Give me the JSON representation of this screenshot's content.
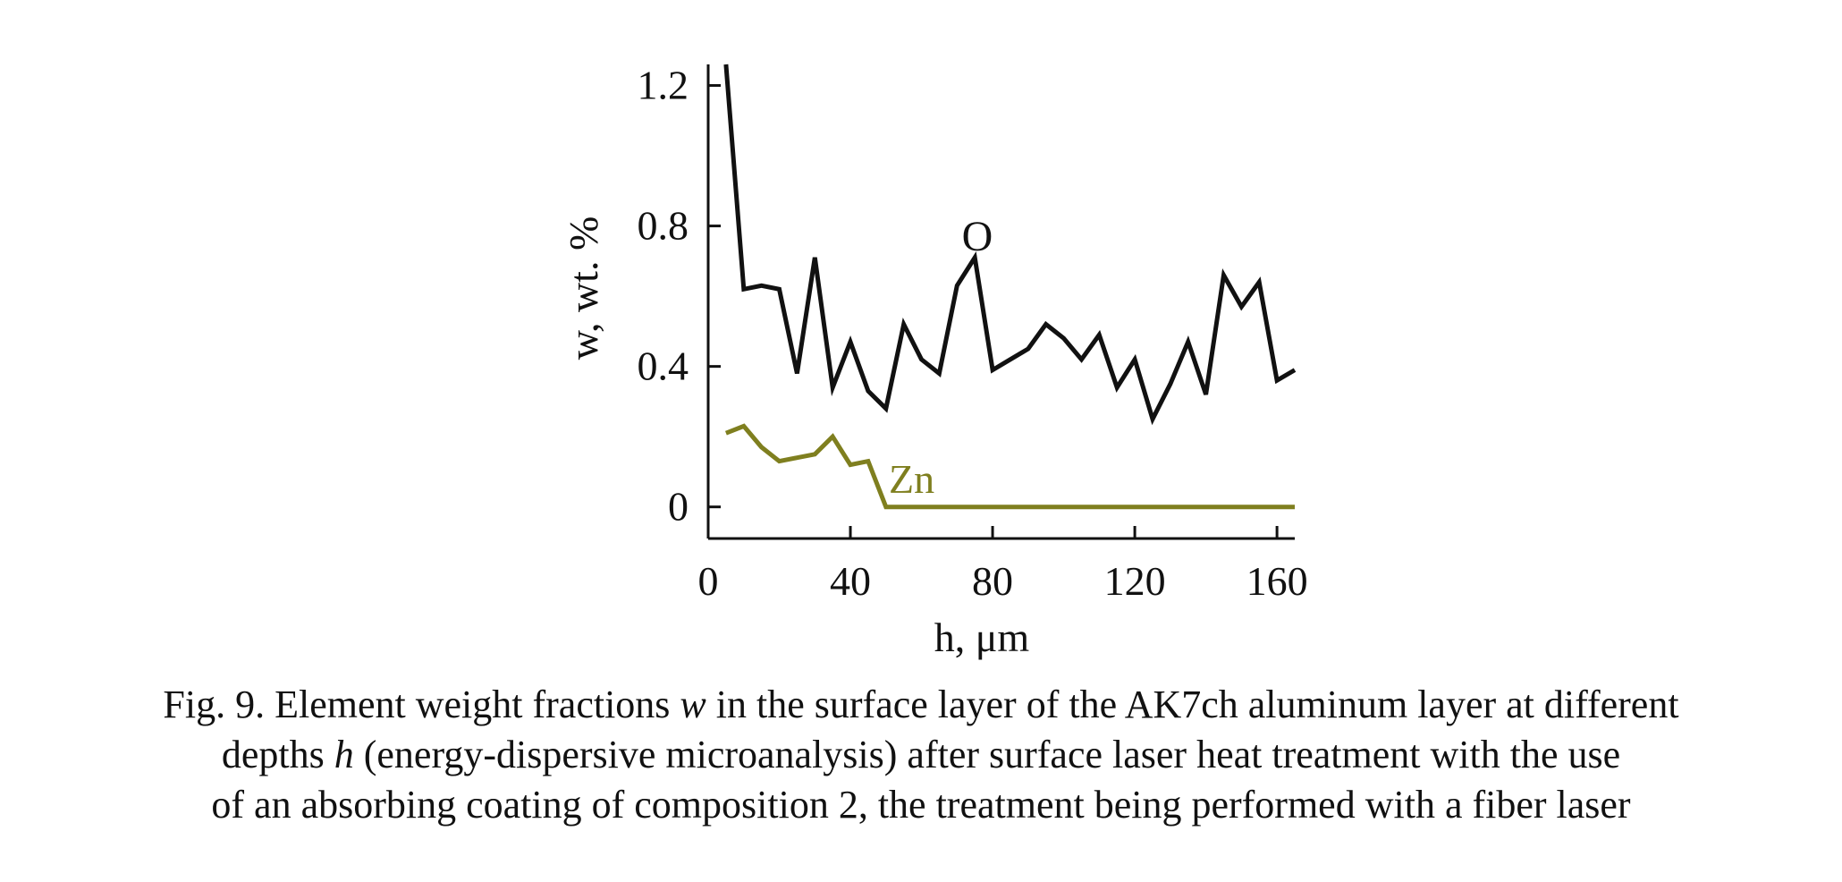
{
  "chart_data": {
    "type": "line",
    "xlabel": "h, μm",
    "ylabel": "w, wt. %",
    "xlim": [
      0,
      165
    ],
    "ylim": [
      -0.09,
      1.26
    ],
    "xticks": [
      0,
      40,
      80,
      120,
      160
    ],
    "yticks": [
      0,
      0.4,
      0.8,
      1.2
    ],
    "ytick_labels": [
      "0",
      "0.4",
      "0.8",
      "1.2"
    ],
    "grid": false,
    "legend": "none (series labeled inline)",
    "series": [
      {
        "name": "O",
        "color": "#111111",
        "x": [
          5,
          10,
          15,
          20,
          25,
          30,
          35,
          40,
          45,
          50,
          55,
          60,
          65,
          70,
          75,
          80,
          85,
          90,
          95,
          100,
          105,
          110,
          115,
          120,
          125,
          130,
          135,
          140,
          145,
          150,
          155,
          160,
          165
        ],
        "y": [
          1.26,
          0.62,
          0.63,
          0.62,
          0.38,
          0.71,
          0.34,
          0.47,
          0.33,
          0.28,
          0.52,
          0.42,
          0.38,
          0.63,
          0.71,
          0.39,
          0.42,
          0.45,
          0.52,
          0.48,
          0.42,
          0.49,
          0.34,
          0.42,
          0.25,
          0.35,
          0.47,
          0.32,
          0.66,
          0.57,
          0.64,
          0.36,
          0.39
        ]
      },
      {
        "name": "Zn",
        "color": "#7f7f1f",
        "x": [
          5,
          10,
          15,
          20,
          25,
          30,
          35,
          40,
          45,
          50,
          165
        ],
        "y": [
          0.21,
          0.23,
          0.17,
          0.13,
          0.14,
          0.15,
          0.2,
          0.12,
          0.13,
          0.0,
          0.0
        ]
      }
    ]
  },
  "caption": {
    "line1_a": "Fig. 9. Element weight fractions ",
    "line1_var": "w",
    "line1_b": " in the surface layer of the AK7ch aluminum layer at different",
    "line2_a": "depths ",
    "line2_var": "h",
    "line2_b": " (energy-dispersive microanalysis) after surface laser heat treatment with the use",
    "line3": "of an absorbing coating of composition 2, the treatment being performed with a fiber laser"
  }
}
